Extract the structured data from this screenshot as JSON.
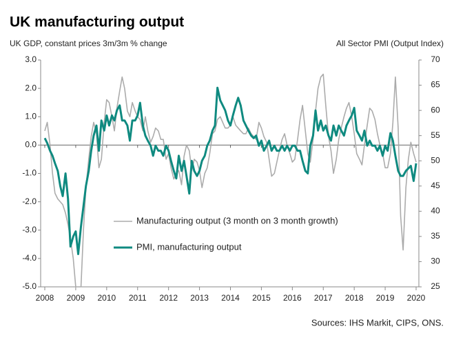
{
  "chart_data": {
    "type": "line",
    "title": "UK manufacturing output",
    "y_label": "UK GDP, constant prices 3m/3m % change",
    "y2_label": "All Sector PMI (Output Index)",
    "source": "Sources: IHS Markit, CIPS, ONS.",
    "legend": "center-left",
    "x": [
      2008,
      2008.08,
      2008.17,
      2008.25,
      2008.33,
      2008.42,
      2008.5,
      2008.58,
      2008.67,
      2008.75,
      2008.83,
      2008.92,
      2009,
      2009.08,
      2009.17,
      2009.25,
      2009.33,
      2009.42,
      2009.5,
      2009.58,
      2009.67,
      2009.75,
      2009.83,
      2009.92,
      2010,
      2010.08,
      2010.17,
      2010.25,
      2010.33,
      2010.42,
      2010.5,
      2010.58,
      2010.67,
      2010.75,
      2010.83,
      2010.92,
      2011,
      2011.08,
      2011.17,
      2011.25,
      2011.33,
      2011.42,
      2011.5,
      2011.58,
      2011.67,
      2011.75,
      2011.83,
      2011.92,
      2012,
      2012.08,
      2012.17,
      2012.25,
      2012.33,
      2012.42,
      2012.5,
      2012.58,
      2012.67,
      2012.75,
      2012.83,
      2012.92,
      2013,
      2013.08,
      2013.17,
      2013.25,
      2013.33,
      2013.42,
      2013.5,
      2013.58,
      2013.67,
      2013.75,
      2013.83,
      2013.92,
      2014,
      2014.08,
      2014.17,
      2014.25,
      2014.33,
      2014.42,
      2014.5,
      2014.58,
      2014.67,
      2014.75,
      2014.83,
      2014.92,
      2015,
      2015.08,
      2015.17,
      2015.25,
      2015.33,
      2015.42,
      2015.5,
      2015.58,
      2015.67,
      2015.75,
      2015.83,
      2015.92,
      2016,
      2016.08,
      2016.17,
      2016.25,
      2016.33,
      2016.42,
      2016.5,
      2016.58,
      2016.67,
      2016.75,
      2016.83,
      2016.92,
      2017,
      2017.08,
      2017.17,
      2017.25,
      2017.33,
      2017.42,
      2017.5,
      2017.58,
      2017.67,
      2017.75,
      2017.83,
      2017.92,
      2018,
      2018.08,
      2018.17,
      2018.25,
      2018.33,
      2018.42,
      2018.5,
      2018.58,
      2018.67,
      2018.75,
      2018.83,
      2018.92,
      2019,
      2019.08,
      2019.17,
      2019.25,
      2019.33,
      2019.42,
      2019.5,
      2019.58,
      2019.67,
      2019.75,
      2019.83,
      2019.92,
      2020
    ],
    "xlim": [
      2008,
      2020
    ],
    "xticks": [
      2008,
      2009,
      2010,
      2011,
      2012,
      2013,
      2014,
      2015,
      2016,
      2017,
      2018,
      2019,
      2020
    ],
    "ylim": [
      -5,
      3
    ],
    "yticks": [
      {
        "value": 3,
        "label": "3.0"
      },
      {
        "value": 2,
        "label": "2.0"
      },
      {
        "value": 1,
        "label": "1.0"
      },
      {
        "value": 0,
        "label": "0.0"
      },
      {
        "value": -1,
        "label": "-1.0"
      },
      {
        "value": -2,
        "label": "-2.0"
      },
      {
        "value": -3,
        "label": "-3.0"
      },
      {
        "value": -4,
        "label": "-4.0"
      },
      {
        "value": -5,
        "label": "-5.0"
      }
    ],
    "y2lim": [
      25,
      70
    ],
    "y2ticks": [
      25,
      30,
      35,
      40,
      45,
      50,
      55,
      60,
      65,
      70
    ],
    "series": [
      {
        "name": "Manufacturing output (3 month on 3 month growth)",
        "color": "#ababab",
        "axis": "y",
        "values": [
          0.5,
          0.8,
          0.0,
          -1.0,
          -1.7,
          -1.9,
          -2.0,
          -2.1,
          -2.4,
          -2.8,
          -3.3,
          -4.0,
          -5.0,
          -5.0,
          -5.0,
          -3.0,
          -1.5,
          -0.5,
          0.3,
          0.8,
          0.4,
          -0.8,
          -0.5,
          0.8,
          1.6,
          1.5,
          1.0,
          0.5,
          1.3,
          1.9,
          2.4,
          2.0,
          1.2,
          1.0,
          1.5,
          1.2,
          1.0,
          0.9,
          0.5,
          1.0,
          0.5,
          0.1,
          0.3,
          0.6,
          0.5,
          0.2,
          0.2,
          -0.5,
          -0.3,
          -0.8,
          -1.2,
          -1.0,
          -0.9,
          -1.4,
          -0.4,
          0.0,
          -0.2,
          -0.9,
          -0.5,
          -0.6,
          -0.9,
          -1.5,
          -1.0,
          -0.8,
          -0.3,
          0.4,
          0.5,
          0.9,
          1.0,
          0.8,
          0.6,
          0.6,
          0.7,
          1.0,
          0.7,
          0.6,
          0.5,
          0.4,
          0.4,
          0.6,
          0.4,
          0.3,
          0.2,
          0.8,
          0.6,
          0.3,
          0.1,
          -0.5,
          -1.1,
          -1.0,
          -0.6,
          -0.2,
          0.2,
          0.4,
          0.0,
          -0.3,
          -0.6,
          -0.5,
          0.2,
          0.9,
          1.4,
          0.5,
          -0.3,
          -0.6,
          0.2,
          1.2,
          2.0,
          2.4,
          2.5,
          1.4,
          0.3,
          -0.2,
          -1.0,
          -0.5,
          0.2,
          0.6,
          1.0,
          1.3,
          1.5,
          1.0,
          0.4,
          -0.3,
          -0.5,
          -0.7,
          0.0,
          0.7,
          1.3,
          1.2,
          0.9,
          0.4,
          0.0,
          -0.3,
          -0.8,
          -0.8,
          -0.3,
          0.8,
          2.4,
          0.6,
          -2.5,
          -3.7,
          -1.5,
          -0.5,
          0.1,
          -0.3,
          -0.6
        ]
      },
      {
        "name": "PMI, manufacturing output",
        "color": "#0f8a80",
        "axis": "y2",
        "values": [
          54.5,
          53.5,
          52,
          51,
          49.5,
          48,
          45,
          43,
          47.5,
          42.5,
          33,
          35,
          36,
          31.5,
          37,
          41,
          45,
          48,
          52,
          55,
          57,
          52,
          58,
          56,
          59,
          57,
          59,
          58,
          60,
          61,
          58,
          58,
          57,
          54,
          58,
          58,
          59,
          61.5,
          57,
          55,
          54,
          53,
          51,
          53,
          52,
          52,
          51,
          53,
          52,
          50,
          48,
          46.5,
          51,
          48,
          50,
          47,
          43.5,
          50,
          48,
          47,
          48,
          50,
          51,
          53,
          54,
          56,
          57,
          64.5,
          62,
          61,
          60,
          58,
          57,
          59,
          61,
          62.5,
          61,
          58,
          57,
          56,
          55,
          54.5,
          55,
          53,
          54,
          52,
          53,
          54,
          52,
          53,
          52,
          52,
          53,
          52,
          53,
          52,
          53,
          53,
          52,
          52,
          50,
          48,
          47.5,
          53,
          55,
          60,
          56,
          58,
          56,
          57,
          55,
          54,
          57,
          55,
          57,
          56,
          55,
          57,
          58,
          59,
          60.5,
          56,
          55,
          54,
          56,
          53,
          54,
          53,
          53,
          52,
          53,
          51,
          53,
          52,
          55.5,
          54,
          51,
          48,
          47,
          47,
          48,
          48.5,
          49,
          46,
          49.5
        ]
      }
    ]
  }
}
